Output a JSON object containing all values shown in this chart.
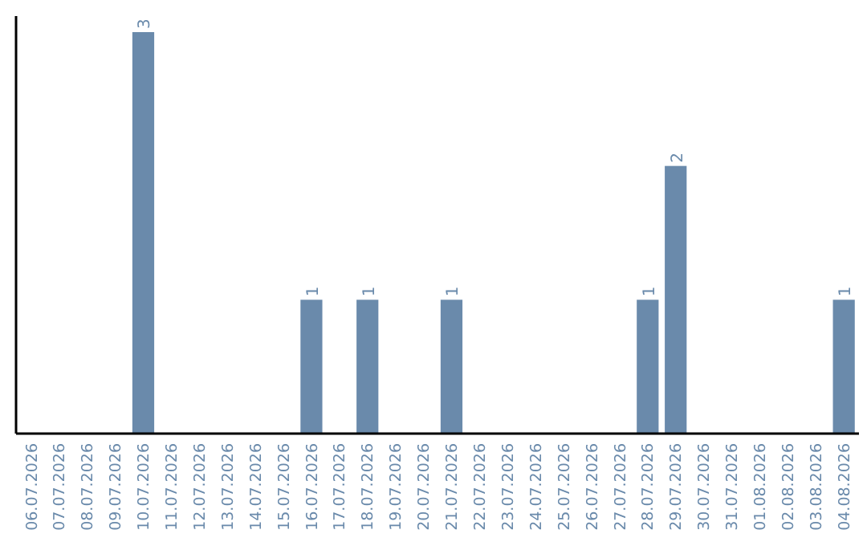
{
  "chart_data": {
    "type": "bar",
    "categories": [
      "06.07.2026",
      "07.07.2026",
      "08.07.2026",
      "09.07.2026",
      "10.07.2026",
      "11.07.2026",
      "12.07.2026",
      "13.07.2026",
      "14.07.2026",
      "15.07.2026",
      "16.07.2026",
      "17.07.2026",
      "18.07.2026",
      "19.07.2026",
      "20.07.2026",
      "21.07.2026",
      "22.07.2026",
      "23.07.2026",
      "24.07.2026",
      "25.07.2026",
      "26.07.2026",
      "27.07.2026",
      "28.07.2026",
      "29.07.2026",
      "30.07.2026",
      "31.07.2026",
      "01.08.2026",
      "02.08.2026",
      "03.08.2026",
      "04.08.2026"
    ],
    "values": [
      0,
      0,
      0,
      0,
      3,
      0,
      0,
      0,
      0,
      0,
      1,
      0,
      1,
      0,
      0,
      1,
      0,
      0,
      0,
      0,
      0,
      0,
      1,
      2,
      0,
      0,
      0,
      0,
      0,
      1
    ],
    "value_labels": [
      null,
      null,
      null,
      null,
      "3",
      null,
      null,
      null,
      null,
      null,
      "1",
      null,
      "1",
      null,
      null,
      "1",
      null,
      null,
      null,
      null,
      null,
      null,
      "1",
      "2",
      null,
      null,
      null,
      null,
      null,
      "1"
    ],
    "color": "#6a8aab",
    "ylim": [
      0,
      3.12
    ],
    "tick_labels": "x"
  }
}
